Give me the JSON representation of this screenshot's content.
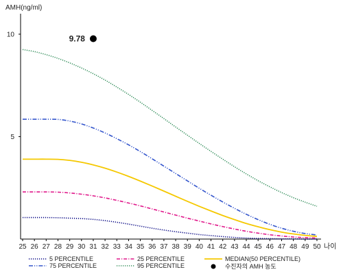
{
  "chart_data": {
    "type": "line",
    "ylabel": "AMH(ng/ml)",
    "xlabel": "나이",
    "x": [
      25,
      26,
      27,
      28,
      29,
      30,
      31,
      32,
      33,
      34,
      35,
      36,
      37,
      38,
      39,
      40,
      41,
      42,
      43,
      44,
      45,
      46,
      47,
      48,
      49,
      50
    ],
    "xlim": [
      25,
      50
    ],
    "ylim": [
      0,
      11
    ],
    "yticks": [
      5,
      10
    ],
    "grid": false,
    "legend_position": "bottom",
    "series": [
      {
        "name": "5 PERCENTILE",
        "color": "#000080",
        "dash": "dotted",
        "values": [
          1.05,
          1.05,
          1.05,
          1.04,
          1.02,
          1.0,
          0.96,
          0.9,
          0.82,
          0.73,
          0.63,
          0.53,
          0.44,
          0.36,
          0.29,
          0.22,
          0.17,
          0.12,
          0.08,
          0.05,
          0.03,
          0.02,
          0.01,
          0.01,
          0.0,
          0.0
        ]
      },
      {
        "name": "25 PERCENTILE",
        "color": "#e0178a",
        "dash": "dashdot",
        "values": [
          2.3,
          2.3,
          2.3,
          2.29,
          2.25,
          2.19,
          2.11,
          2.01,
          1.89,
          1.76,
          1.62,
          1.47,
          1.32,
          1.17,
          1.02,
          0.88,
          0.74,
          0.61,
          0.49,
          0.38,
          0.29,
          0.21,
          0.15,
          0.1,
          0.07,
          0.05
        ]
      },
      {
        "name": "75 PERCENTILE",
        "color": "#3355cc",
        "dash": "dashdotdot",
        "values": [
          5.85,
          5.85,
          5.85,
          5.84,
          5.76,
          5.62,
          5.42,
          5.18,
          4.9,
          4.6,
          4.27,
          3.92,
          3.56,
          3.2,
          2.84,
          2.48,
          2.14,
          1.81,
          1.5,
          1.21,
          0.95,
          0.72,
          0.53,
          0.38,
          0.27,
          0.2
        ]
      },
      {
        "name": "MEDIAN(50 PERCENTILE)",
        "color": "#f5c800",
        "dash": "solid",
        "values": [
          3.9,
          3.9,
          3.9,
          3.89,
          3.84,
          3.75,
          3.62,
          3.46,
          3.27,
          3.06,
          2.83,
          2.59,
          2.34,
          2.09,
          1.84,
          1.6,
          1.37,
          1.15,
          0.95,
          0.76,
          0.6,
          0.46,
          0.34,
          0.25,
          0.18,
          0.13
        ]
      },
      {
        "name": "95 PERCENTILE",
        "color": "#2e8b57",
        "dash": "dotted",
        "values": [
          9.25,
          9.15,
          9.0,
          8.82,
          8.6,
          8.35,
          8.07,
          7.76,
          7.42,
          7.06,
          6.68,
          6.28,
          5.88,
          5.47,
          5.07,
          4.67,
          4.28,
          3.9,
          3.53,
          3.18,
          2.85,
          2.55,
          2.27,
          2.02,
          1.8,
          1.6
        ]
      }
    ],
    "point": {
      "name": "수진자의 AMH 농도",
      "x": 31,
      "y": 9.78,
      "label": "9.78",
      "color": "#000000"
    }
  }
}
